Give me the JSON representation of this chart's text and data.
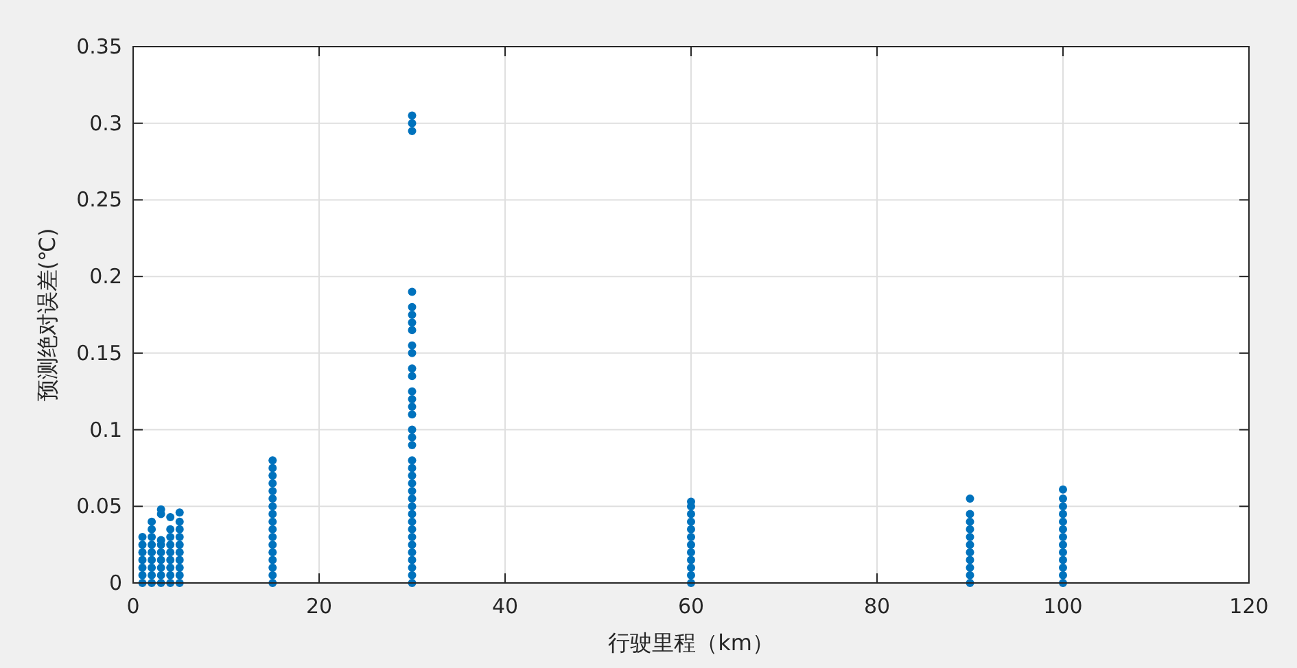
{
  "chart_data": {
    "type": "scatter",
    "xlabel": "行驶里程（km）",
    "ylabel": "预测绝对误差(℃)",
    "xlim": [
      0,
      120
    ],
    "ylim": [
      0,
      0.35
    ],
    "xticks": [
      0,
      20,
      40,
      60,
      80,
      100,
      120
    ],
    "yticks": [
      0,
      0.05,
      0.1,
      0.15,
      0.2,
      0.25,
      0.3,
      0.35
    ],
    "grid": true,
    "marker": "circle",
    "series": [
      {
        "color": "#0072bd",
        "x": [
          1,
          1,
          1,
          1,
          1,
          1,
          1,
          2,
          2,
          2,
          2,
          2,
          2,
          2,
          2,
          2,
          3,
          3,
          3,
          3,
          3,
          3,
          3,
          3,
          3,
          4,
          4,
          4,
          4,
          4,
          4,
          4,
          4,
          4,
          5,
          5,
          5,
          5,
          5,
          5,
          5,
          5,
          5,
          5,
          15,
          15,
          15,
          15,
          15,
          15,
          15,
          15,
          15,
          15,
          15,
          15,
          15,
          15,
          15,
          15,
          15,
          30,
          30,
          30,
          30,
          30,
          30,
          30,
          30,
          30,
          30,
          30,
          30,
          30,
          30,
          30,
          30,
          30,
          30,
          30,
          30,
          30,
          30,
          30,
          30,
          30,
          30,
          30,
          30,
          30,
          30,
          30,
          30,
          30,
          30,
          30,
          30,
          60,
          60,
          60,
          60,
          60,
          60,
          60,
          60,
          60,
          60,
          60,
          60,
          90,
          90,
          90,
          90,
          90,
          90,
          90,
          90,
          90,
          90,
          90,
          100,
          100,
          100,
          100,
          100,
          100,
          100,
          100,
          100,
          100,
          100,
          100,
          100
        ],
        "values": [
          0,
          0.005,
          0.01,
          0.015,
          0.02,
          0.025,
          0.03,
          0,
          0.005,
          0.01,
          0.015,
          0.02,
          0.025,
          0.03,
          0.035,
          0.04,
          0,
          0.005,
          0.01,
          0.015,
          0.02,
          0.025,
          0.028,
          0.045,
          0.048,
          0,
          0.005,
          0.01,
          0.015,
          0.02,
          0.025,
          0.03,
          0.035,
          0.043,
          0,
          0.005,
          0.01,
          0.015,
          0.02,
          0.025,
          0.03,
          0.035,
          0.04,
          0.046,
          0,
          0.005,
          0.01,
          0.015,
          0.02,
          0.025,
          0.03,
          0.035,
          0.04,
          0.045,
          0.05,
          0.055,
          0.06,
          0.065,
          0.07,
          0.075,
          0.08,
          0,
          0.005,
          0.01,
          0.015,
          0.02,
          0.025,
          0.03,
          0.035,
          0.04,
          0.045,
          0.05,
          0.055,
          0.06,
          0.065,
          0.07,
          0.075,
          0.08,
          0.09,
          0.095,
          0.1,
          0.11,
          0.115,
          0.12,
          0.125,
          0.135,
          0.14,
          0.15,
          0.155,
          0.165,
          0.17,
          0.175,
          0.18,
          0.19,
          0.295,
          0.3,
          0.305,
          0,
          0.005,
          0.01,
          0.015,
          0.02,
          0.025,
          0.03,
          0.035,
          0.04,
          0.045,
          0.05,
          0.053,
          0,
          0.005,
          0.01,
          0.015,
          0.02,
          0.025,
          0.03,
          0.035,
          0.04,
          0.045,
          0.055,
          0,
          0.005,
          0.01,
          0.015,
          0.02,
          0.025,
          0.03,
          0.035,
          0.04,
          0.045,
          0.05,
          0.055,
          0.061
        ]
      }
    ]
  }
}
